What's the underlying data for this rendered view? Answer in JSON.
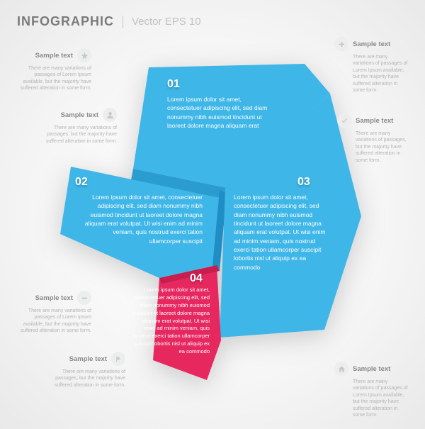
{
  "header": {
    "title": "INFOGRAPHIC",
    "subtitle": "Vector EPS 10"
  },
  "colors": {
    "blue_light": "#3fb6e8",
    "blue_shadow": "#2a9cd0",
    "blue_deep": "#1f8ec4",
    "pink": "#e6285f",
    "pink_shadow": "#c51e4f",
    "note_icon_bg": "#eceded",
    "note_icon_fill": "#c7c8c9",
    "note_title": "#8a8a8a",
    "note_text": "#b5b5b5"
  },
  "segments": {
    "s1": {
      "num": "01",
      "text": "Lorem ipsum dolor sit amet, consectetuer adipiscing elit, sed diam nonummy nibh euismod tincidunt ut laoreet dolore magna aliquam erat"
    },
    "s2": {
      "num": "02",
      "text": "Lorem ipsum dolor sit amet, consectetuer adipiscing elit, sed diam nonummy nibh euismod tincidunt ut laoreet dolore magna aliquam erat volutpat. Ut wisi enim ad minim veniam, quis nostrud exerci tation ullamcorper suscipit"
    },
    "s3": {
      "num": "03",
      "text": "Lorem ipsum dolor sit amet, consectetuer adipiscing elit, sed diam nonummy nibh euismod tincidunt ut laoreet dolore magna aliquam erat volutpat. Ut wisi enim ad minim veniam, quis nostrud exerci tation ullamcorper suscipit lobortis nisl ut aliquip ex ea commodo"
    },
    "s4": {
      "num": "04",
      "text": "Lorem ipsum dolor sit amet, consectetuer adipiscing elit, sed diam nonummy nibh euismod tincidunt ut laoreet dolore magna aliquam erat volutpat. Ut wisi enim ad minim veniam, quis nostrud exerci tation ullamcorper suscipit lobortis nisl ut aliquip ex ea commodo"
    }
  },
  "notes": {
    "n1": {
      "icon": "star",
      "title": "Sample text",
      "text": "There are many variations of passages of Lorem Ipsum available, but the majority have suffered alteration in some form."
    },
    "n2": {
      "icon": "user",
      "title": "Sample text",
      "text": "There are many variations of passages, but the majority have suffered alteration in some form."
    },
    "n3": {
      "icon": "minus",
      "title": "Sample text",
      "text": "There are many variations of passages of Lorem Ipsum available, but the majority have suffered alteration in some form."
    },
    "n4": {
      "icon": "flag",
      "title": "Sample text",
      "text": "There are many variations of passages, but the majority have suffered alteration in some form."
    },
    "n5": {
      "icon": "plus",
      "title": "Sample text",
      "text": "There are many variations of passages of Lorem Ipsum available, but the majority have suffered alteration in some form."
    },
    "n6": {
      "icon": "check",
      "title": "Sample text",
      "text": "There are many variations of passages, but the majority have suffered alteration in some form."
    },
    "n7": {
      "icon": "home",
      "title": "Sample text",
      "text": "There are many variations of passages of Lorem Ipsum available, but the majority have suffered alteration in some form."
    }
  }
}
